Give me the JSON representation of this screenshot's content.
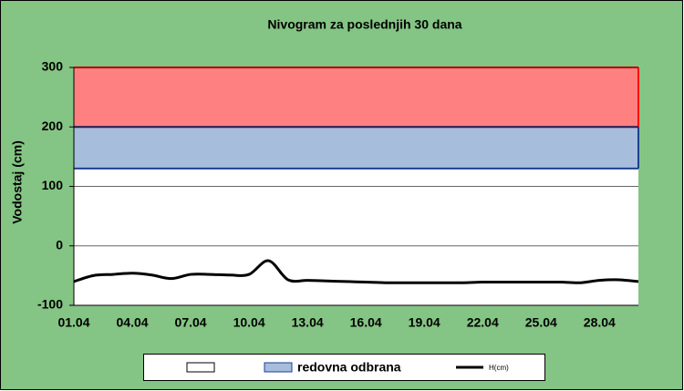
{
  "chart_data": {
    "type": "line",
    "title": "Nivogram za poslednjih 30 dana",
    "y_label": "Vodostaj (cm)",
    "categories": [
      "01.04",
      null,
      null,
      "04.04",
      null,
      null,
      "07.04",
      null,
      null,
      "10.04",
      null,
      null,
      "13.04",
      null,
      null,
      "16.04",
      null,
      null,
      "19.04",
      null,
      null,
      "22.04",
      null,
      null,
      "25.04",
      null,
      null,
      "28.04",
      null,
      null
    ],
    "series": [
      {
        "name": "H(cm)",
        "color": "#000000",
        "values": [
          -60,
          -50,
          -48,
          -46,
          -49,
          -55,
          -48,
          -48,
          -49,
          -48,
          -25,
          -57,
          -58,
          -59,
          -60,
          -61,
          -62,
          -62,
          -62,
          -62,
          -62,
          -61,
          -61,
          -61,
          -61,
          -61,
          -62,
          -58,
          -57,
          -60
        ]
      }
    ],
    "bands": [
      {
        "name": "redovna odbrana",
        "from": 130,
        "to": 200,
        "color": "#a6bddb",
        "edge": "#1f3f8f"
      },
      {
        "from": 200,
        "to": 300,
        "color": "#ff8080",
        "edge": "#ff0000"
      }
    ],
    "ylim": [
      -100,
      300
    ],
    "yticks": [
      -100,
      0,
      100,
      200,
      300
    ],
    "grid": true
  }
}
